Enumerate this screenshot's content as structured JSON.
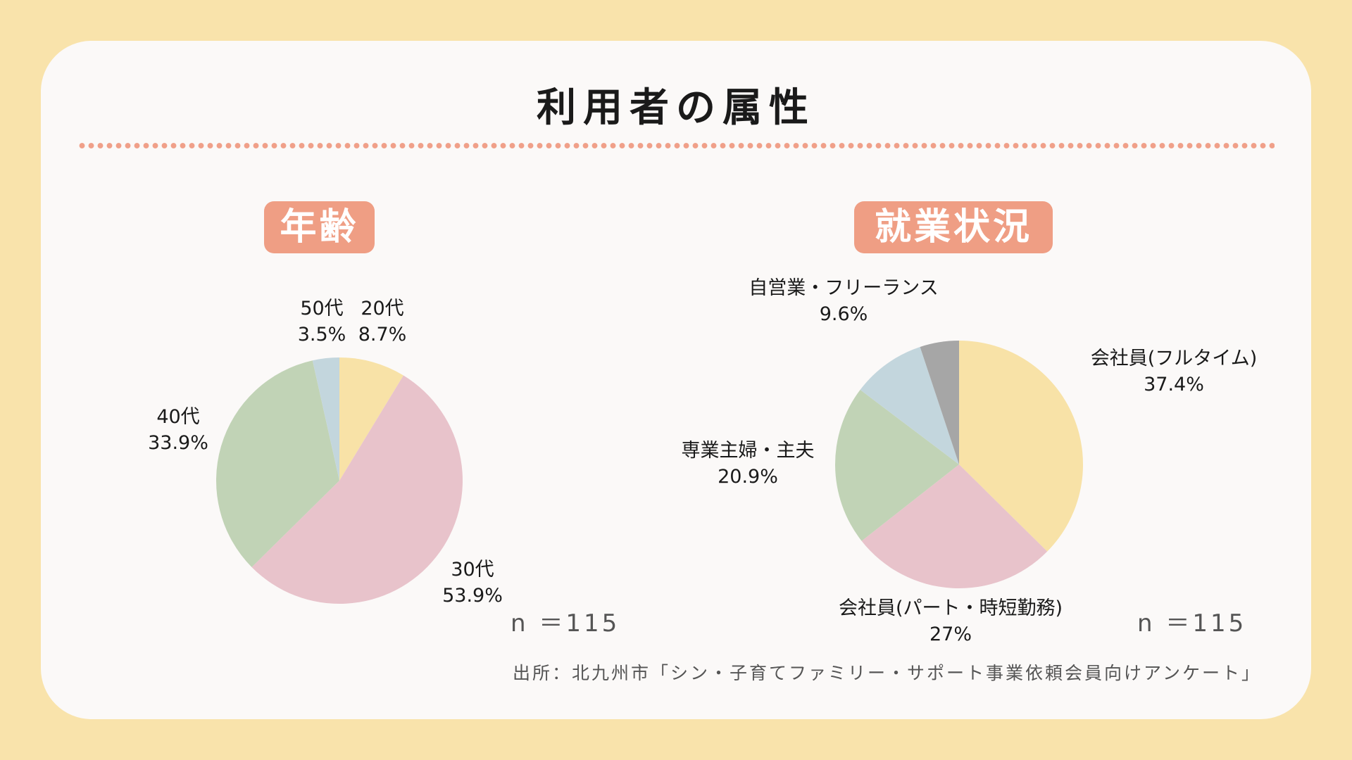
{
  "title": "利用者の属性",
  "chart_data": [
    {
      "type": "pie",
      "title": "年齢",
      "n_label": "n ＝115",
      "slices": [
        {
          "name": "20代",
          "value": 8.7,
          "label": "8.7%",
          "color": "#f8e2a7"
        },
        {
          "name": "30代",
          "value": 53.9,
          "label": "53.9%",
          "color": "#e8c3cb"
        },
        {
          "name": "40代",
          "value": 33.9,
          "label": "33.9%",
          "color": "#c1d3b6"
        },
        {
          "name": "50代",
          "value": 3.5,
          "label": "3.5%",
          "color": "#c3d6dd"
        }
      ]
    },
    {
      "type": "pie",
      "title": "就業状況",
      "n_label": "n ＝115",
      "slices": [
        {
          "name": "会社員(フルタイム)",
          "value": 37.4,
          "label": "37.4%",
          "color": "#f8e2a7"
        },
        {
          "name": "会社員(パート・時短勤務)",
          "value": 27,
          "label": "27%",
          "color": "#e8c3cb"
        },
        {
          "name": "専業主婦・主夫",
          "value": 20.9,
          "label": "20.9%",
          "color": "#c1d3b6"
        },
        {
          "name": "自営業・フリーランス",
          "value": 9.6,
          "label": "9.6%",
          "color": "#c3d6dd"
        },
        {
          "name": "",
          "value": 5.1,
          "label": "",
          "color": "#a6a6a6"
        }
      ]
    }
  ],
  "source": "出所：北九州市「シン・子育てファミリー・サポート事業依頼会員向けアンケート」"
}
